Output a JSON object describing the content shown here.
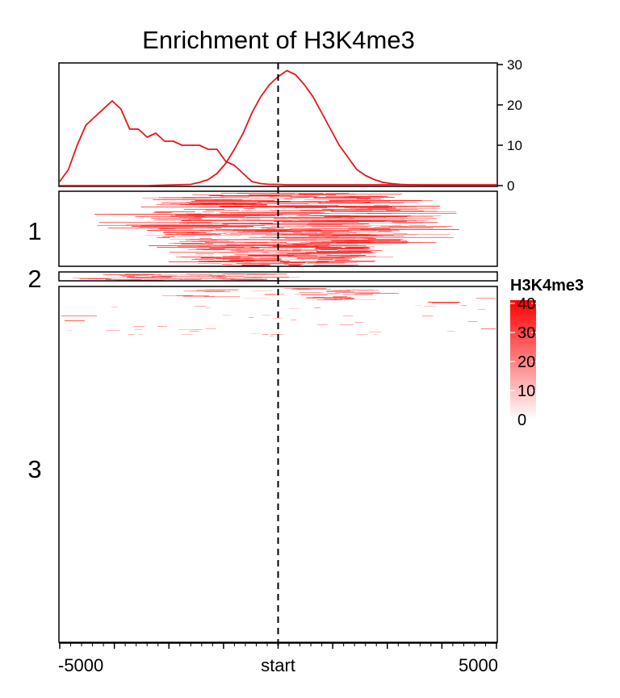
{
  "chart_data": {
    "type": "heatmap",
    "title": "Enrichment of H3K4me3",
    "xlabel": "",
    "ylabel": "",
    "x_tick_labels": [
      "-5000",
      "start",
      "5000"
    ],
    "x_range": [
      -5000,
      5000
    ],
    "reference_line": {
      "label": "start",
      "x": 0,
      "style": "dashed"
    },
    "profile": {
      "ylim": [
        0,
        30
      ],
      "y_ticks": [
        "0",
        "10",
        "20",
        "30"
      ],
      "axis_side": "right",
      "series": [
        {
          "color": "#e8141b",
          "x": [
            -5000,
            -4800,
            -4600,
            -4400,
            -4200,
            -4000,
            -3800,
            -3600,
            -3400,
            -3200,
            -3000,
            -2800,
            -2600,
            -2400,
            -2200,
            -2000,
            -1800,
            -1600,
            -1400,
            -1200,
            -1000,
            -800,
            -600,
            -400,
            -200,
            0,
            200,
            400,
            600,
            800,
            1000,
            2000,
            3000,
            4000,
            5000
          ],
          "y": [
            1,
            4,
            10,
            15,
            17,
            19,
            21,
            19,
            14,
            14,
            12,
            13,
            11,
            11,
            10,
            10,
            10,
            9,
            9,
            6,
            5,
            3,
            1,
            0.5,
            0.3,
            0.3,
            0.2,
            0.2,
            0.2,
            0.2,
            0.2,
            0.2,
            0.2,
            0.2,
            0.2
          ]
        },
        {
          "color": "#e8141b",
          "x": [
            -5000,
            -4000,
            -3000,
            -2000,
            -1800,
            -1600,
            -1400,
            -1200,
            -1000,
            -800,
            -600,
            -400,
            -200,
            0,
            200,
            400,
            600,
            800,
            1000,
            1200,
            1400,
            1600,
            1800,
            2000,
            2200,
            2400,
            2600,
            2800,
            3000,
            3500,
            4000,
            5000
          ],
          "y": [
            0,
            0,
            0,
            0.3,
            0.8,
            1.5,
            3,
            5.5,
            9,
            13,
            18,
            22,
            25,
            27,
            28.5,
            27.5,
            25,
            22,
            18,
            14,
            10,
            7,
            4,
            2.5,
            1.5,
            0.8,
            0.5,
            0.3,
            0.2,
            0.1,
            0.1,
            0.1
          ]
        }
      ]
    },
    "clusters": [
      {
        "label": "1",
        "description": "strong enrichment centered after start, from about -1700 to 2200"
      },
      {
        "label": "2",
        "description": "weak enrichment upstream, -5000 to -1000"
      },
      {
        "label": "3",
        "description": "mostly empty, sparse signal in top rows"
      }
    ],
    "legend": {
      "title": "H3K4me3",
      "range": [
        0,
        40
      ],
      "ticks": [
        "0",
        "10",
        "20",
        "30",
        "40"
      ],
      "color_low": "#ffffff",
      "color_high": "#ff0000"
    }
  }
}
